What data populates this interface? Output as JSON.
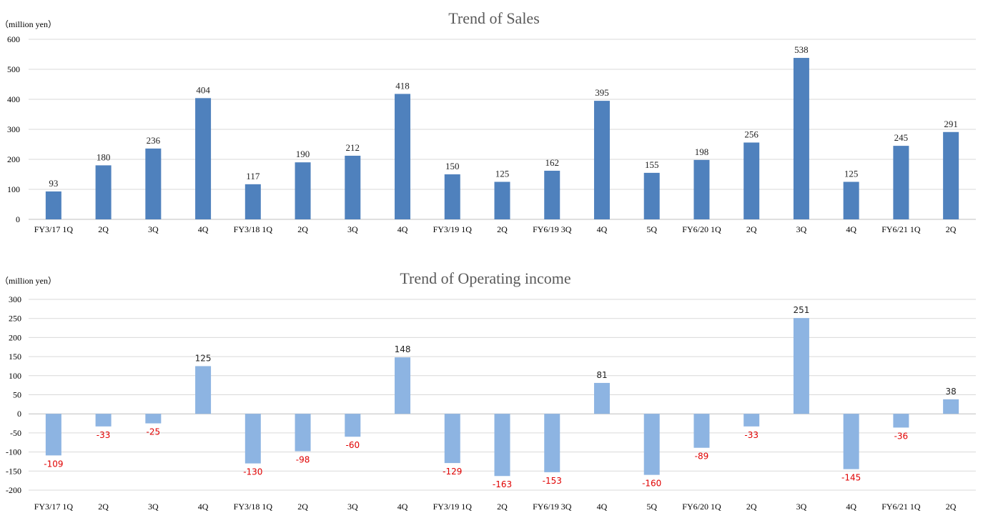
{
  "colors": {
    "sales_bar": "#4f81bd",
    "income_bar": "#8db4e2",
    "negative_label": "#e00000",
    "positive_label": "#222222"
  },
  "chart_data": [
    {
      "type": "bar",
      "title": "Trend of Sales",
      "unit_label": "（million yen）",
      "categories": [
        "FY3/17 1Q",
        "2Q",
        "3Q",
        "4Q",
        "FY3/18 1Q",
        "2Q",
        "3Q",
        "4Q",
        "FY3/19 1Q",
        "2Q",
        "FY6/19 3Q",
        "4Q",
        "5Q",
        "FY6/20 1Q",
        "2Q",
        "3Q",
        "4Q",
        "FY6/21 1Q",
        "2Q"
      ],
      "values": [
        93,
        180,
        236,
        404,
        117,
        190,
        212,
        418,
        150,
        125,
        162,
        395,
        155,
        198,
        256,
        538,
        125,
        245,
        291
      ],
      "ylim": [
        0,
        600
      ],
      "yticks": [
        "0",
        "100",
        "200",
        "300",
        "400",
        "500",
        "600"
      ],
      "grid": true
    },
    {
      "type": "bar",
      "title": "Trend of Operating income",
      "unit_label": "（million yen）",
      "categories": [
        "FY3/17 1Q",
        "2Q",
        "3Q",
        "4Q",
        "FY3/18 1Q",
        "2Q",
        "3Q",
        "4Q",
        "FY3/19 1Q",
        "2Q",
        "FY6/19 3Q",
        "4Q",
        "5Q",
        "FY6/20 1Q",
        "2Q",
        "3Q",
        "4Q",
        "FY6/21 1Q",
        "2Q"
      ],
      "values": [
        -109,
        -33,
        -25,
        125,
        -130,
        -98,
        -60,
        148,
        -129,
        -163,
        -153,
        81,
        -160,
        -89,
        -33,
        251,
        -145,
        -36,
        38
      ],
      "ylim": [
        -200,
        300
      ],
      "yticks": [
        "300",
        "250",
        "200",
        "150",
        "100",
        "50",
        "0",
        "-50",
        "-100",
        "-150",
        "-200"
      ],
      "grid": true
    }
  ]
}
